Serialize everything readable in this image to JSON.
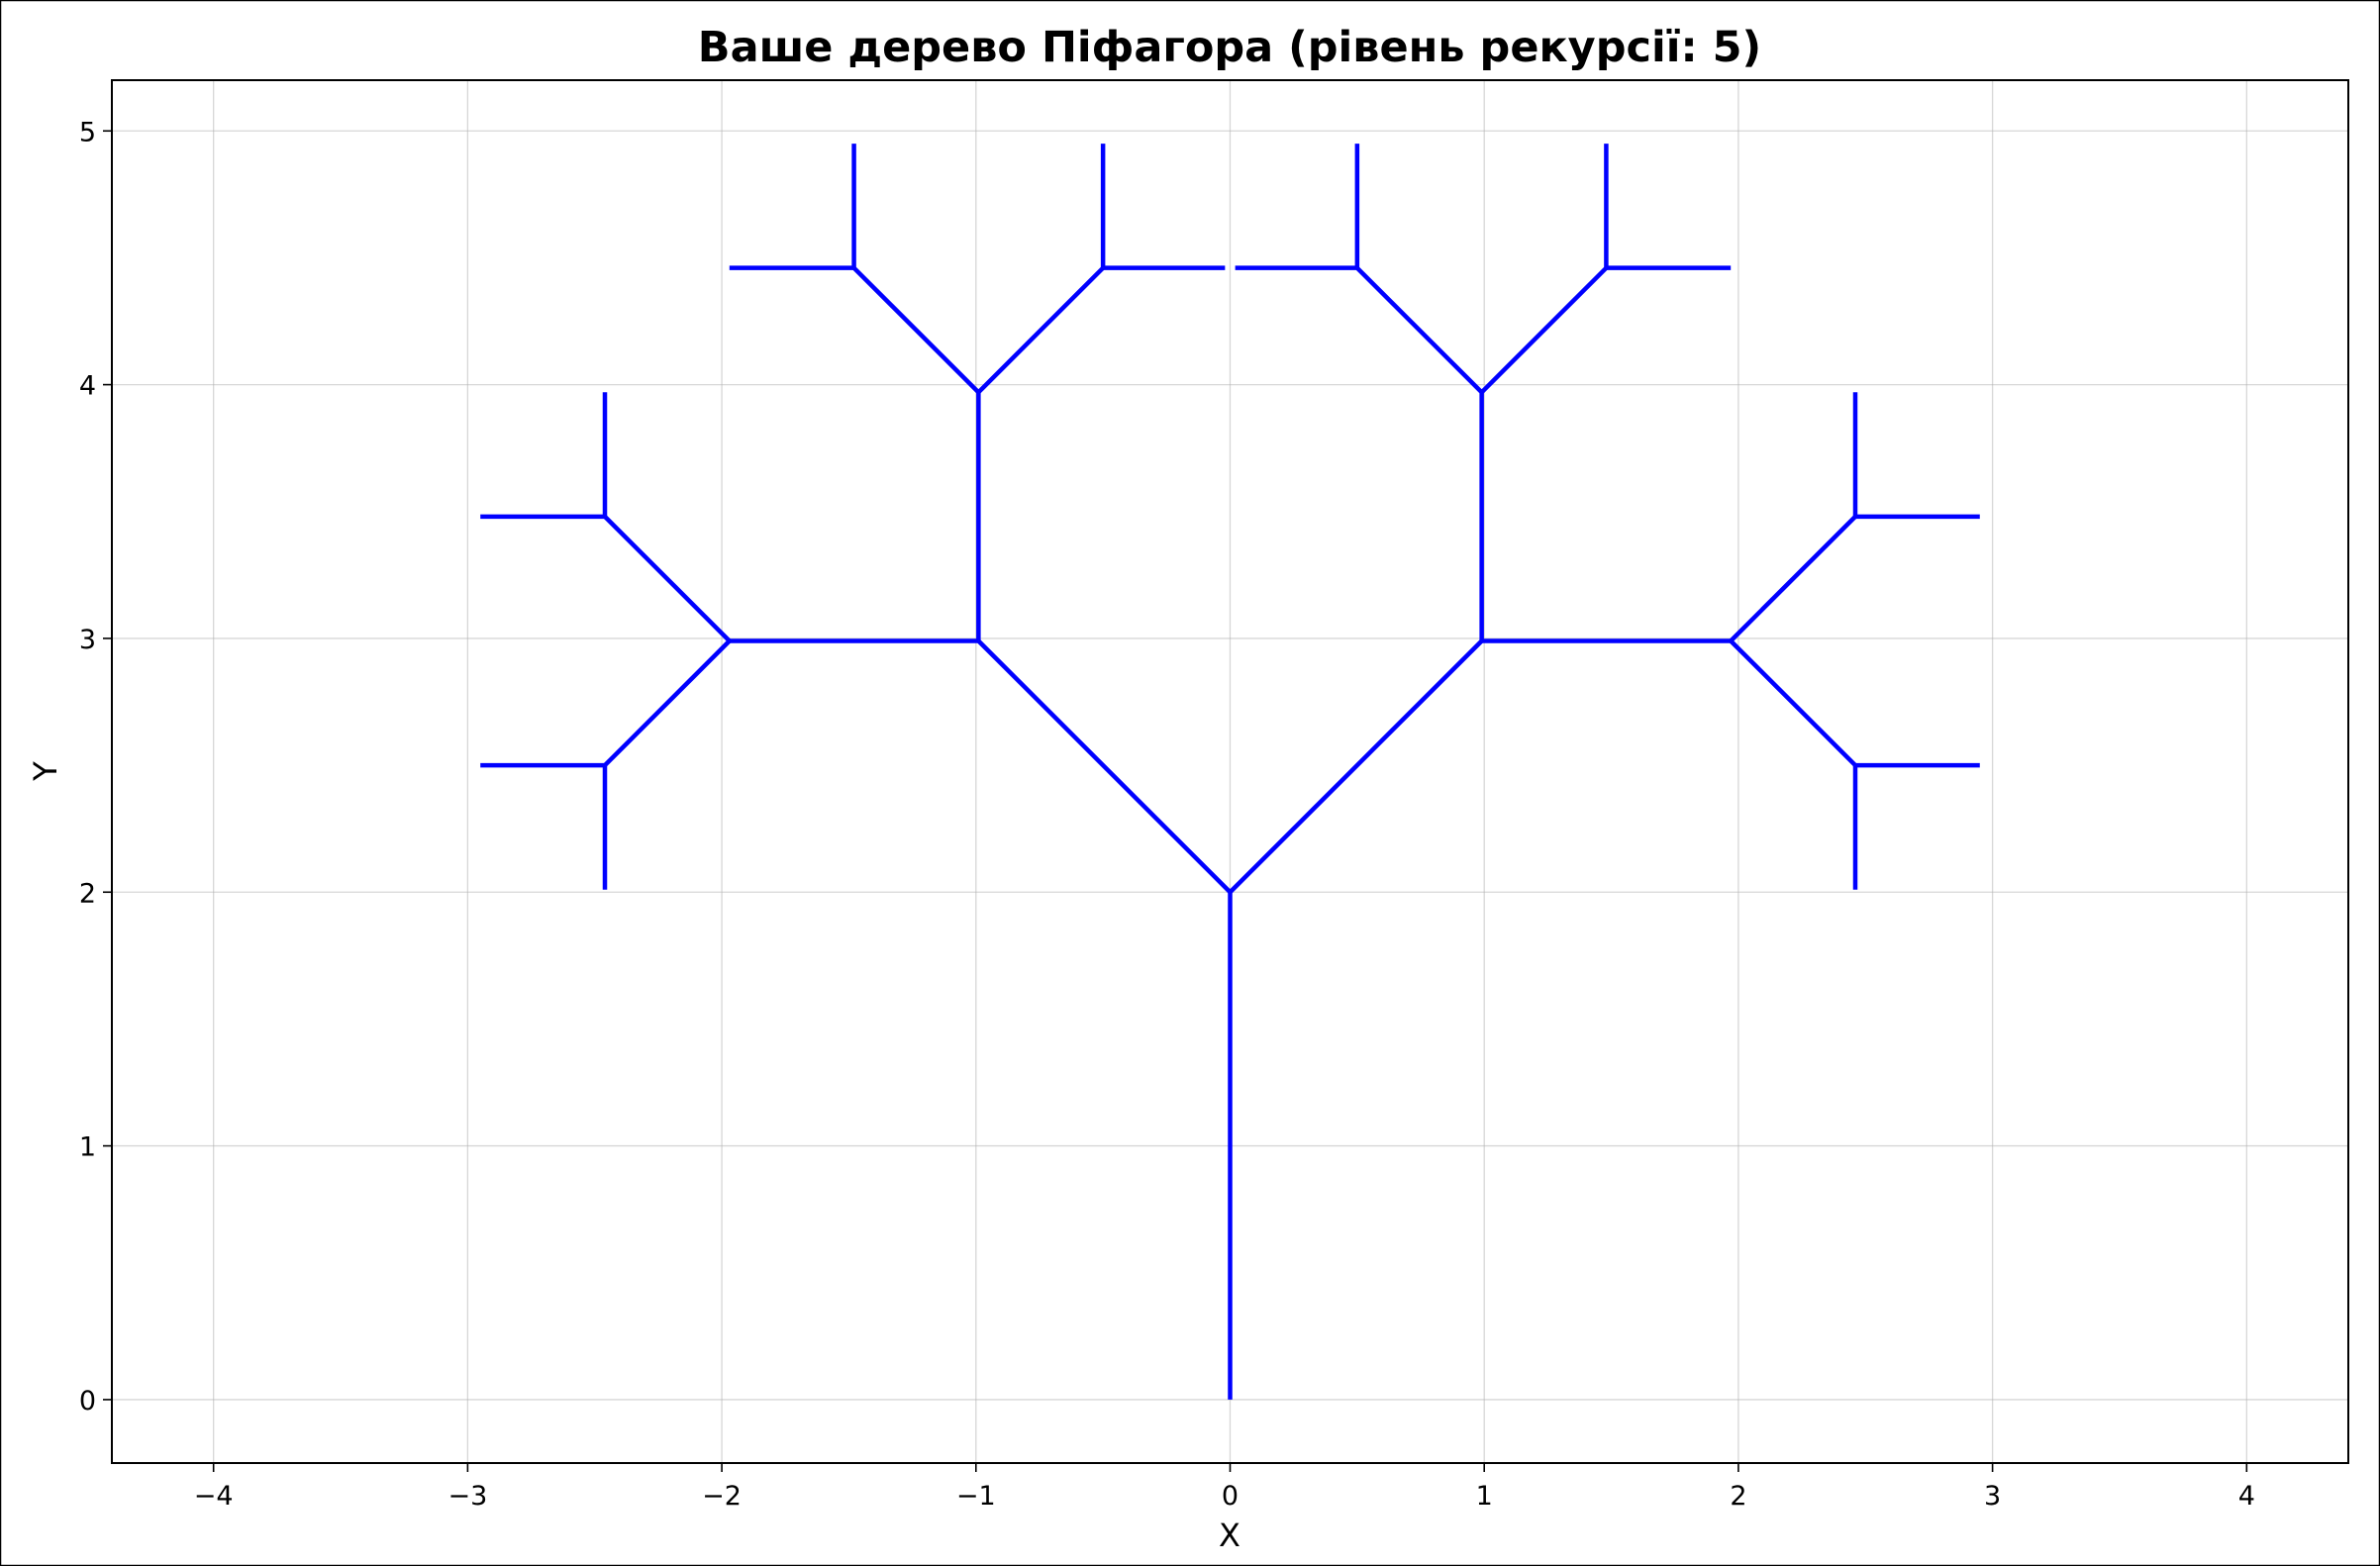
{
  "chart_data": {
    "type": "line",
    "title": "Ваше дерево Піфагора (рівень рекурсії: 5)",
    "xlabel": "X",
    "ylabel": "Y",
    "xlim": [
      -4.4,
      4.4
    ],
    "ylim": [
      -0.25,
      5.2
    ],
    "xticks": [
      -4,
      -3,
      -2,
      -1,
      0,
      1,
      2,
      3,
      4
    ],
    "xtick_labels": [
      "−4",
      "−3",
      "−2",
      "−1",
      "0",
      "1",
      "2",
      "3",
      "4"
    ],
    "yticks": [
      0,
      1,
      2,
      3,
      4,
      5
    ],
    "ytick_labels": [
      "0",
      "1",
      "2",
      "3",
      "4",
      "5"
    ],
    "grid": true,
    "line_color": "#0000ff",
    "segments": [
      [
        [
          0,
          0
        ],
        [
          0,
          2
        ]
      ],
      [
        [
          0,
          2
        ],
        [
          -0.99,
          2.99
        ]
      ],
      [
        [
          0,
          2
        ],
        [
          0.99,
          2.99
        ]
      ],
      [
        [
          -0.99,
          2.99
        ],
        [
          -1.97,
          2.99
        ]
      ],
      [
        [
          -0.99,
          2.99
        ],
        [
          -0.99,
          3.97
        ]
      ],
      [
        [
          0.99,
          2.99
        ],
        [
          1.97,
          2.99
        ]
      ],
      [
        [
          0.99,
          2.99
        ],
        [
          0.99,
          3.97
        ]
      ],
      [
        [
          -1.97,
          2.99
        ],
        [
          -2.46,
          3.48
        ]
      ],
      [
        [
          -1.97,
          2.99
        ],
        [
          -2.46,
          2.5
        ]
      ],
      [
        [
          -0.99,
          3.97
        ],
        [
          -1.48,
          4.46
        ]
      ],
      [
        [
          -0.99,
          3.97
        ],
        [
          -0.5,
          4.46
        ]
      ],
      [
        [
          0.99,
          3.97
        ],
        [
          0.5,
          4.46
        ]
      ],
      [
        [
          0.99,
          3.97
        ],
        [
          1.48,
          4.46
        ]
      ],
      [
        [
          1.97,
          2.99
        ],
        [
          2.46,
          3.48
        ]
      ],
      [
        [
          1.97,
          2.99
        ],
        [
          2.46,
          2.5
        ]
      ],
      [
        [
          -2.46,
          3.48
        ],
        [
          -2.95,
          3.48
        ]
      ],
      [
        [
          -2.46,
          3.48
        ],
        [
          -2.46,
          3.97
        ]
      ],
      [
        [
          -2.46,
          2.5
        ],
        [
          -2.95,
          2.5
        ]
      ],
      [
        [
          -2.46,
          2.5
        ],
        [
          -2.46,
          2.01
        ]
      ],
      [
        [
          -1.48,
          4.46
        ],
        [
          -1.97,
          4.46
        ]
      ],
      [
        [
          -1.48,
          4.46
        ],
        [
          -1.48,
          4.95
        ]
      ],
      [
        [
          -0.5,
          4.46
        ],
        [
          -0.5,
          4.95
        ]
      ],
      [
        [
          -0.5,
          4.46
        ],
        [
          -0.02,
          4.46
        ]
      ],
      [
        [
          0.5,
          4.46
        ],
        [
          0.02,
          4.46
        ]
      ],
      [
        [
          0.5,
          4.46
        ],
        [
          0.5,
          4.95
        ]
      ],
      [
        [
          1.48,
          4.46
        ],
        [
          1.48,
          4.95
        ]
      ],
      [
        [
          1.48,
          4.46
        ],
        [
          1.97,
          4.46
        ]
      ],
      [
        [
          2.46,
          3.48
        ],
        [
          2.46,
          3.97
        ]
      ],
      [
        [
          2.46,
          3.48
        ],
        [
          2.95,
          3.48
        ]
      ],
      [
        [
          2.46,
          2.5
        ],
        [
          2.95,
          2.5
        ]
      ],
      [
        [
          2.46,
          2.5
        ],
        [
          2.46,
          2.01
        ]
      ]
    ]
  }
}
